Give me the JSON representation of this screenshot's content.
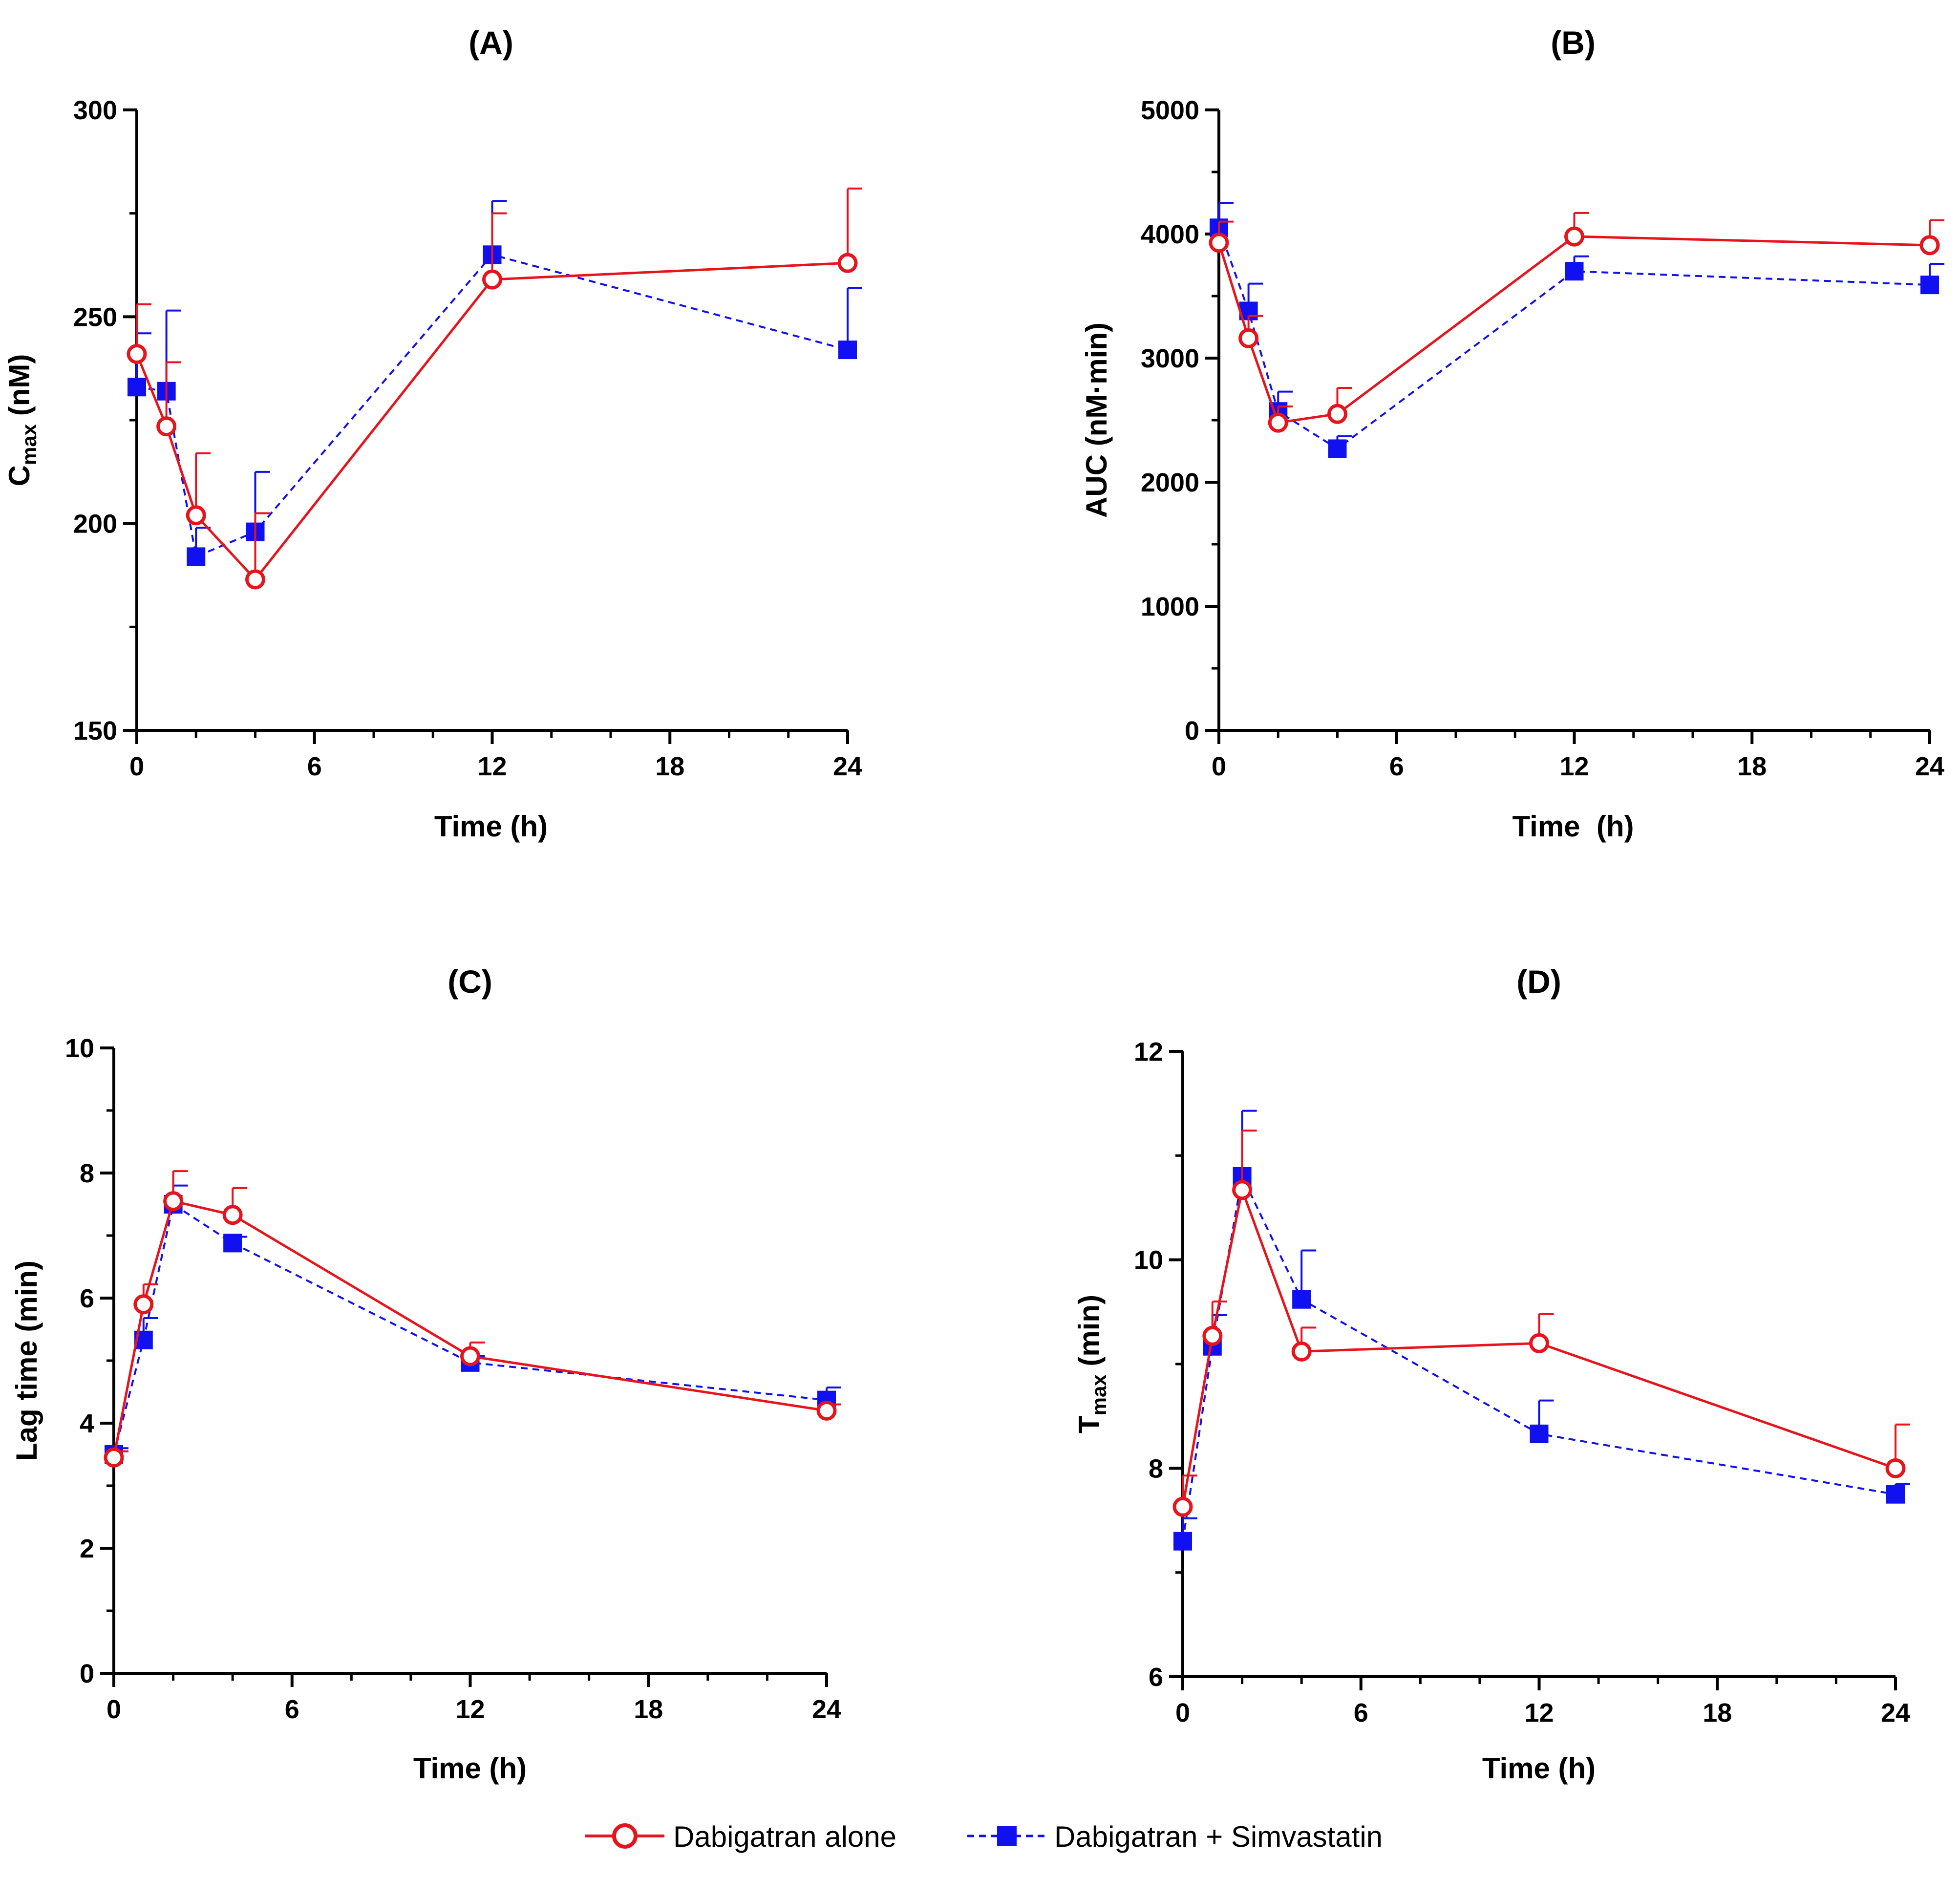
{
  "legend": {
    "series_alone": "Dabigatran alone",
    "series_combo": "Dabigatran + Simvastatin"
  },
  "colors": {
    "alone": "#e8141c",
    "combo": "#1010f0",
    "axis": "#000000"
  },
  "chart_data": [
    {
      "id": "A",
      "type": "line",
      "title": "(A)",
      "xlabel": "Time (h)",
      "ylabel": "Cmax (nM)",
      "ylabel_main": "C",
      "ylabel_sub": "max",
      "ylabel_unit": " (nM)",
      "xlim": [
        0,
        24
      ],
      "ylim": [
        150,
        300
      ],
      "xticks": [
        0,
        6,
        12,
        18,
        24
      ],
      "yticks": [
        150,
        200,
        250,
        300
      ],
      "x": [
        0,
        1,
        2,
        4,
        12,
        24
      ],
      "series": [
        {
          "name": "Dabigatran alone",
          "values": [
            241,
            223.5,
            202,
            186.5,
            259,
            263
          ],
          "errors": [
            12,
            15.5,
            15,
            16,
            16,
            18
          ]
        },
        {
          "name": "Dabigatran + Simvastatin",
          "values": [
            233,
            232,
            192,
            198,
            265,
            242
          ],
          "errors": [
            13,
            19.5,
            7,
            14.5,
            13,
            15
          ]
        }
      ]
    },
    {
      "id": "B",
      "type": "line",
      "title": "(B)",
      "xlabel": "Time  (h)",
      "ylabel": "AUC (nM·min)",
      "xlim": [
        0,
        24
      ],
      "ylim": [
        0,
        5000
      ],
      "xticks": [
        0,
        6,
        12,
        18,
        24
      ],
      "yticks": [
        0,
        1000,
        2000,
        3000,
        4000,
        5000
      ],
      "x": [
        0,
        1,
        2,
        4,
        12,
        24
      ],
      "series": [
        {
          "name": "Dabigatran alone",
          "values": [
            3930,
            3160,
            2480,
            2550,
            3980,
            3910
          ],
          "errors": [
            170,
            180,
            130,
            210,
            190,
            200
          ]
        },
        {
          "name": "Dabigatran + Simvastatin",
          "values": [
            4050,
            3380,
            2570,
            2270,
            3700,
            3590
          ],
          "errors": [
            200,
            220,
            160,
            100,
            120,
            170
          ]
        }
      ]
    },
    {
      "id": "C",
      "type": "line",
      "title": "(C)",
      "xlabel": "Time (h)",
      "ylabel": "Lag time (min)",
      "xlim": [
        0,
        24
      ],
      "ylim": [
        0,
        10
      ],
      "xticks": [
        0,
        6,
        12,
        18,
        24
      ],
      "yticks": [
        0,
        2,
        4,
        6,
        8,
        10
      ],
      "x": [
        0,
        1,
        2,
        4,
        12,
        24
      ],
      "series": [
        {
          "name": "Dabigatran alone",
          "values": [
            3.45,
            5.9,
            7.55,
            7.33,
            5.07,
            4.2
          ],
          "errors": [
            0.1,
            0.32,
            0.48,
            0.43,
            0.22,
            0.1
          ]
        },
        {
          "name": "Dabigatran + Simvastatin",
          "values": [
            3.5,
            5.33,
            7.5,
            6.88,
            4.97,
            4.37
          ],
          "errors": [
            0.1,
            0.35,
            0.3,
            0.1,
            0.1,
            0.2
          ]
        }
      ]
    },
    {
      "id": "D",
      "type": "line",
      "title": "(D)",
      "xlabel": "Time (h)",
      "ylabel": "Tmax (min)",
      "ylabel_main": "T",
      "ylabel_sub": "max",
      "ylabel_unit": " (min)",
      "xlim": [
        0,
        24
      ],
      "ylim": [
        6,
        12
      ],
      "xticks": [
        0,
        6,
        12,
        18,
        24
      ],
      "yticks": [
        6,
        8,
        10,
        12
      ],
      "x": [
        0,
        1,
        2,
        4,
        12,
        24
      ],
      "series": [
        {
          "name": "Dabigatran alone",
          "values": [
            7.63,
            9.27,
            10.67,
            9.12,
            9.2,
            8.0
          ],
          "errors": [
            0.3,
            0.33,
            0.57,
            0.23,
            0.28,
            0.42
          ]
        },
        {
          "name": "Dabigatran + Simvastatin",
          "values": [
            7.3,
            9.17,
            10.8,
            9.62,
            8.33,
            7.75
          ],
          "errors": [
            0.22,
            0.3,
            0.63,
            0.47,
            0.32,
            0.1
          ]
        }
      ]
    }
  ]
}
